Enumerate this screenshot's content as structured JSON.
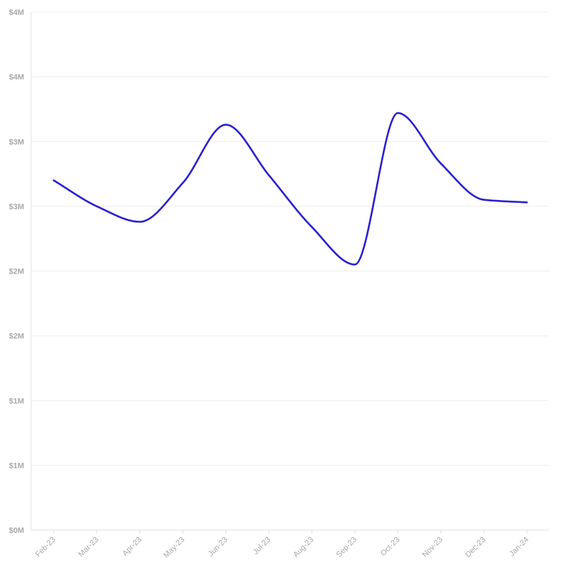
{
  "chart_data": {
    "type": "line",
    "title": "",
    "xlabel": "",
    "ylabel": "",
    "grid": true,
    "legend": "none",
    "x": [
      "Feb-23",
      "Mar-23",
      "Apr-23",
      "May-23",
      "Jun-23",
      "Jul-23",
      "Aug-23",
      "Sep-23",
      "Oct-23",
      "Nov-23",
      "Dec-23",
      "Jan-24"
    ],
    "y_ticks": [
      0,
      500000,
      1000000,
      1500000,
      2000000,
      2500000,
      3000000,
      3500000,
      4000000
    ],
    "y_tick_labels": [
      "$0M",
      "$1M",
      "$1M",
      "$2M",
      "$2M",
      "$3M",
      "$3M",
      "$4M",
      "$4M"
    ],
    "ylim": [
      0,
      4000000
    ],
    "series": [
      {
        "color": "#2a1fd1",
        "values": [
          2700000,
          2500000,
          2380000,
          2680000,
          3130000,
          2740000,
          2340000,
          2050000,
          3220000,
          2830000,
          2550000,
          2530000
        ]
      }
    ]
  }
}
